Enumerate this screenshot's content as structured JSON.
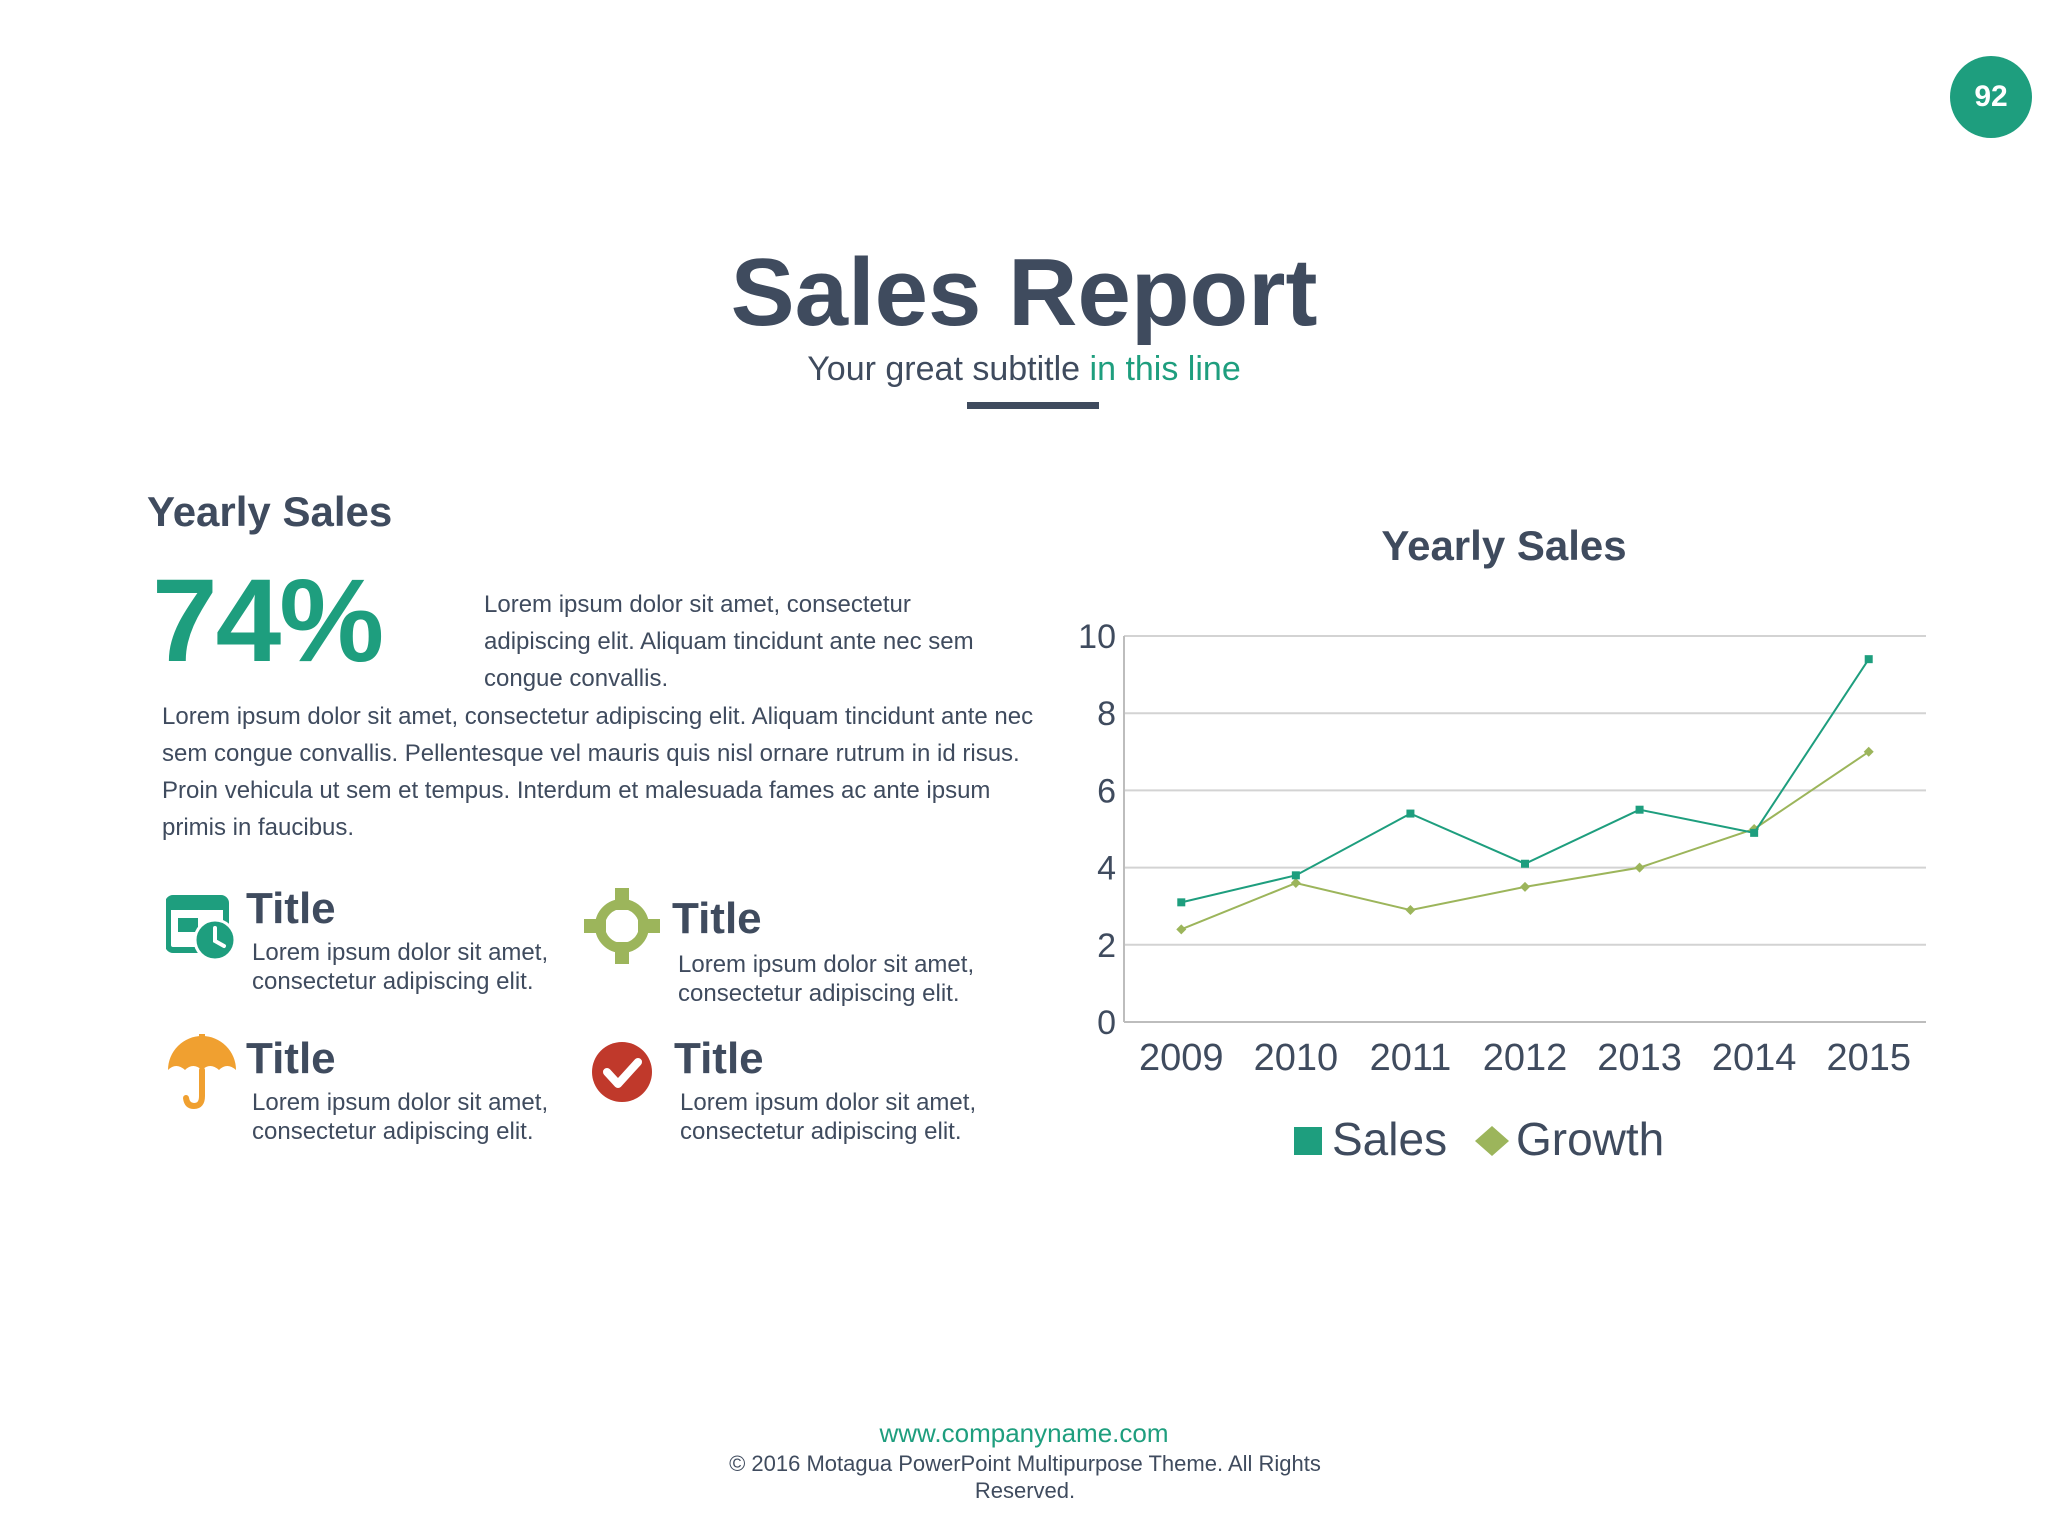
{
  "page_number": "92",
  "header": {
    "title": "Sales Report",
    "subtitle_main": "Your great subtitle",
    "subtitle_accent": "in this line"
  },
  "left": {
    "heading": "Yearly Sales",
    "percent": "74%",
    "short_paragraph": "Lorem ipsum dolor sit amet, consectetur adipiscing elit. Aliquam tincidunt ante nec sem congue convallis.",
    "long_paragraph": "Lorem ipsum dolor sit amet, consectetur adipiscing elit. Aliquam tincidunt ante nec sem congue convallis. Pellentesque vel mauris quis nisl ornare rutrum in id risus. Proin vehicula ut sem et tempus. Interdum et malesuada fames ac ante ipsum primis in faucibus.",
    "features": [
      {
        "title": "Title",
        "text": "Lorem ipsum dolor sit amet, consectetur adipiscing elit.",
        "icon": "calendar-clock-icon",
        "color": "#1e9e7e"
      },
      {
        "title": "Title",
        "text": "Lorem ipsum dolor sit amet, consectetur adipiscing elit.",
        "icon": "target-crosshair-icon",
        "color": "#9cb55b"
      },
      {
        "title": "Title",
        "text": "Lorem ipsum dolor sit amet, consectetur adipiscing elit.",
        "icon": "umbrella-icon",
        "color": "#f0a030"
      },
      {
        "title": "Title",
        "text": "Lorem ipsum dolor sit amet, consectetur adipiscing elit.",
        "icon": "check-circle-icon",
        "color": "#c0392b"
      }
    ]
  },
  "chart_data": {
    "type": "line",
    "title": "Yearly Sales",
    "categories": [
      "2009",
      "2010",
      "2011",
      "2012",
      "2013",
      "2014",
      "2015"
    ],
    "series": [
      {
        "name": "Sales",
        "values": [
          3.1,
          3.8,
          5.4,
          4.1,
          5.5,
          4.9,
          9.4
        ],
        "color": "#1e9e7e",
        "marker": "square"
      },
      {
        "name": "Growth",
        "values": [
          2.4,
          3.6,
          2.9,
          3.5,
          4.0,
          5.0,
          7.0
        ],
        "color": "#9cb55b",
        "marker": "diamond"
      }
    ],
    "ylim": [
      0,
      10
    ],
    "yticks": [
      "0",
      "2",
      "4",
      "6",
      "8",
      "10"
    ],
    "grid": true,
    "legend": "bottom"
  },
  "footer": {
    "url": "www.companyname.com",
    "copyright": "© 2016 Motagua PowerPoint Multipurpose Theme. All Rights Reserved."
  },
  "colors": {
    "primary": "#1e9e7e",
    "text": "#3f4b5e",
    "green_light": "#9cb55b"
  }
}
